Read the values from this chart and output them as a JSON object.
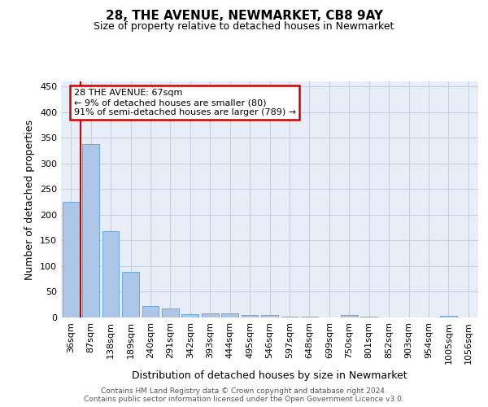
{
  "title": "28, THE AVENUE, NEWMARKET, CB8 9AY",
  "subtitle": "Size of property relative to detached houses in Newmarket",
  "xlabel": "Distribution of detached houses by size in Newmarket",
  "ylabel": "Number of detached properties",
  "categories": [
    "36sqm",
    "87sqm",
    "138sqm",
    "189sqm",
    "240sqm",
    "291sqm",
    "342sqm",
    "393sqm",
    "444sqm",
    "495sqm",
    "546sqm",
    "597sqm",
    "648sqm",
    "699sqm",
    "750sqm",
    "801sqm",
    "852sqm",
    "903sqm",
    "954sqm",
    "1005sqm",
    "1056sqm"
  ],
  "values": [
    226,
    338,
    168,
    89,
    23,
    17,
    7,
    8,
    8,
    5,
    5,
    1,
    1,
    0,
    4,
    1,
    0,
    0,
    0,
    3,
    0
  ],
  "bar_color": "#aec6e8",
  "bar_edge_color": "#5a9fd4",
  "vline_color": "#cc0000",
  "vline_x_index": 0,
  "annotation_text": "28 THE AVENUE: 67sqm\n← 9% of detached houses are smaller (80)\n91% of semi-detached houses are larger (789) →",
  "annotation_box_color": "#cc0000",
  "ylim": [
    0,
    460
  ],
  "yticks": [
    0,
    50,
    100,
    150,
    200,
    250,
    300,
    350,
    400,
    450
  ],
  "footer": "Contains HM Land Registry data © Crown copyright and database right 2024.\nContains public sector information licensed under the Open Government Licence v3.0.",
  "bg_color": "#e8eef8",
  "grid_color": "#c8d0e0",
  "title_fontsize": 11,
  "subtitle_fontsize": 9,
  "ylabel_fontsize": 9,
  "xlabel_fontsize": 9,
  "tick_fontsize": 8,
  "footer_fontsize": 6.5
}
